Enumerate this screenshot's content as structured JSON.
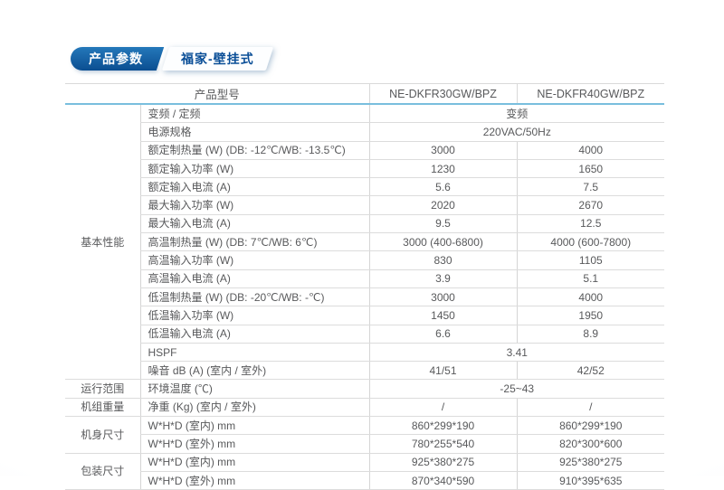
{
  "tabs": {
    "primary": "产品参数",
    "secondary": "福家-壁挂式"
  },
  "colors": {
    "tab_blue_top": "#2478ba",
    "tab_blue_bottom": "#0b4e91",
    "tab_secondary_text": "#0a4e97",
    "header_divider_blue": "#79bede",
    "grid_border": "#dcdcdc",
    "text": "#58595b"
  },
  "table": {
    "header": {
      "model_label": "产品型号",
      "models": [
        "NE-DKFR30GW/BPZ",
        "NE-DKFR40GW/BPZ"
      ]
    },
    "groups": [
      "基本性能",
      "运行范围",
      "机组重量",
      "机身尺寸",
      "包装尺寸"
    ],
    "rows": [
      {
        "label": "变频 / 定频",
        "span": "变频"
      },
      {
        "label": "电源规格",
        "span": "220VAC/50Hz"
      },
      {
        "label": "额定制热量 (W) (DB: -12℃/WB: -13.5℃)",
        "v1": "3000",
        "v2": "4000"
      },
      {
        "label": "额定输入功率 (W)",
        "v1": "1230",
        "v2": "1650"
      },
      {
        "label": "额定输入电流 (A)",
        "v1": "5.6",
        "v2": "7.5"
      },
      {
        "label": "最大输入功率 (W)",
        "v1": "2020",
        "v2": "2670"
      },
      {
        "label": "最大输入电流 (A)",
        "v1": "9.5",
        "v2": "12.5"
      },
      {
        "label": "高温制热量 (W) (DB: 7℃/WB: 6℃)",
        "v1": "3000 (400-6800)",
        "v2": "4000 (600-7800)"
      },
      {
        "label": "高温输入功率 (W)",
        "v1": "830",
        "v2": "1105"
      },
      {
        "label": "高温输入电流 (A)",
        "v1": "3.9",
        "v2": "5.1"
      },
      {
        "label": "低温制热量 (W) (DB: -20℃/WB: -℃)",
        "v1": "3000",
        "v2": "4000"
      },
      {
        "label": "低温输入功率 (W)",
        "v1": "1450",
        "v2": "1950"
      },
      {
        "label": "低温输入电流 (A)",
        "v1": "6.6",
        "v2": "8.9"
      },
      {
        "label": "HSPF",
        "span": "3.41"
      },
      {
        "label": "噪音 dB (A) (室内 / 室外)",
        "v1": "41/51",
        "v2": "42/52"
      },
      {
        "label": "环境温度 (℃)",
        "span": "-25~43"
      },
      {
        "label": "净重 (Kg) (室内 / 室外)",
        "v1": "/",
        "v2": "/"
      },
      {
        "label": "W*H*D (室内) mm",
        "v1": "860*299*190",
        "v2": "860*299*190"
      },
      {
        "label": "W*H*D (室外) mm",
        "v1": "780*255*540",
        "v2": "820*300*600"
      },
      {
        "label": "W*H*D (室内) mm",
        "v1": "925*380*275",
        "v2": "925*380*275"
      },
      {
        "label": "W*H*D (室外) mm",
        "v1": "870*340*590",
        "v2": "910*395*635"
      }
    ]
  }
}
